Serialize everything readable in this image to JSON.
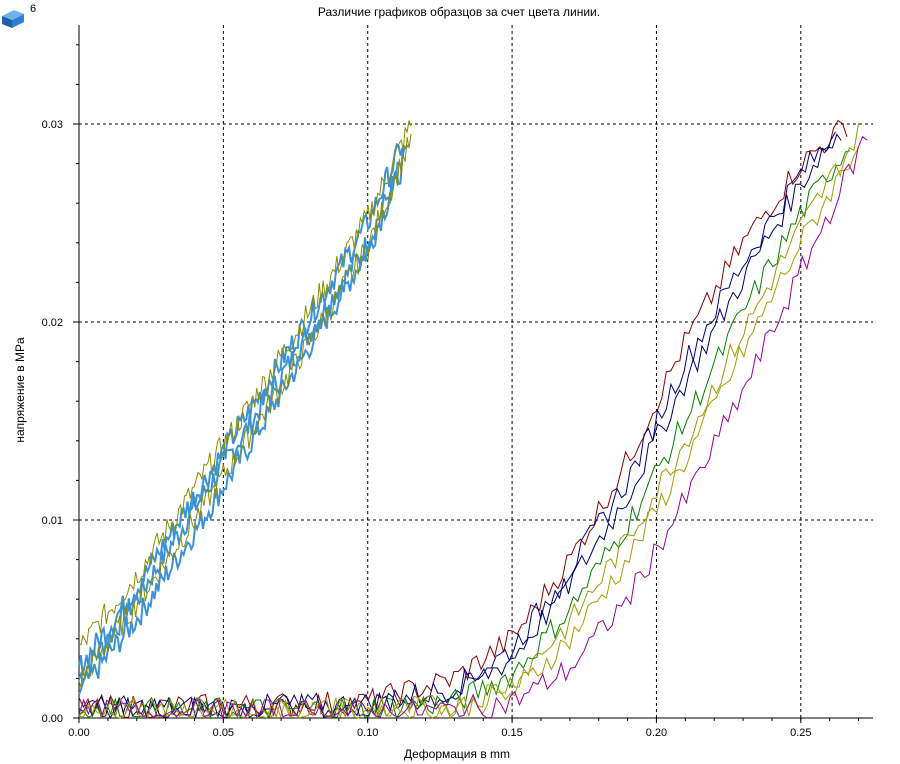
{
  "header": {
    "badge_count": "6",
    "badge_icon": "blue-cube-icon"
  },
  "chart_data": {
    "type": "line",
    "title": "Различие графиков образцов за счет цвета линии.",
    "xlabel": "Деформация в mm",
    "ylabel": "напряжение в MPa",
    "xlim": [
      0,
      0.275
    ],
    "ylim": [
      0,
      0.035
    ],
    "x_ticks": [
      "0.00",
      "0.05",
      "0.10",
      "0.15",
      "0.20",
      "0.25"
    ],
    "y_ticks": [
      "0.00",
      "0.01",
      "0.02",
      "0.03"
    ],
    "grid": true,
    "grid_style": "dashed",
    "series": [
      {
        "color": "#3a93d8",
        "x": [
          0,
          0.02,
          0.04,
          0.06,
          0.08,
          0.1,
          0.113
        ],
        "y": [
          0.002,
          0.006,
          0.0106,
          0.015,
          0.0195,
          0.024,
          0.0284
        ]
      },
      {
        "color": "#3a93d8",
        "x": [
          0,
          0.02,
          0.04,
          0.06,
          0.08,
          0.1,
          0.114
        ],
        "y": [
          0.0013,
          0.005,
          0.0094,
          0.014,
          0.0188,
          0.0236,
          0.0286
        ]
      },
      {
        "color": "#3a93d8",
        "x": [
          0,
          0.02,
          0.04,
          0.06,
          0.08,
          0.1,
          0.112
        ],
        "y": [
          0.0025,
          0.0066,
          0.0112,
          0.0157,
          0.0203,
          0.025,
          0.029
        ]
      },
      {
        "color": "#8c8c00",
        "x": [
          0,
          0.02,
          0.04,
          0.06,
          0.08,
          0.1,
          0.115
        ],
        "y": [
          0.0035,
          0.0072,
          0.0116,
          0.016,
          0.0206,
          0.0253,
          0.03
        ]
      },
      {
        "color": "#8c8c00",
        "x": [
          0,
          0.02,
          0.04,
          0.06,
          0.08,
          0.1,
          0.115
        ],
        "y": [
          0.0018,
          0.0058,
          0.01,
          0.0145,
          0.019,
          0.0238,
          0.0292
        ]
      },
      {
        "color": "#8b0000",
        "x": [
          0,
          0.05,
          0.1,
          0.13,
          0.15,
          0.17,
          0.19,
          0.21,
          0.23,
          0.25,
          0.266
        ],
        "y": [
          0.0005,
          0.0006,
          0.0008,
          0.002,
          0.004,
          0.008,
          0.013,
          0.019,
          0.024,
          0.028,
          0.03
        ]
      },
      {
        "color": "#000080",
        "x": [
          0,
          0.05,
          0.1,
          0.13,
          0.15,
          0.17,
          0.19,
          0.21,
          0.23,
          0.25,
          0.264
        ],
        "y": [
          0.0005,
          0.0005,
          0.0007,
          0.0015,
          0.0035,
          0.0075,
          0.012,
          0.018,
          0.023,
          0.0275,
          0.0298
        ]
      },
      {
        "color": "#00006a",
        "x": [
          0,
          0.05,
          0.1,
          0.13,
          0.15,
          0.17,
          0.19,
          0.21,
          0.23,
          0.25,
          0.262
        ],
        "y": [
          0.0004,
          0.0005,
          0.0006,
          0.0012,
          0.003,
          0.0068,
          0.0112,
          0.017,
          0.0222,
          0.027,
          0.0296
        ]
      },
      {
        "color": "#008000",
        "x": [
          0,
          0.05,
          0.1,
          0.13,
          0.15,
          0.17,
          0.19,
          0.21,
          0.23,
          0.25,
          0.267
        ],
        "y": [
          0.0004,
          0.0004,
          0.0005,
          0.0008,
          0.0022,
          0.0055,
          0.0098,
          0.015,
          0.0205,
          0.0255,
          0.029
        ]
      },
      {
        "color": "#9a9a00",
        "x": [
          0,
          0.05,
          0.1,
          0.13,
          0.15,
          0.17,
          0.19,
          0.21,
          0.23,
          0.25,
          0.27
        ],
        "y": [
          0.0004,
          0.0004,
          0.0004,
          0.0006,
          0.0018,
          0.0048,
          0.009,
          0.014,
          0.0195,
          0.0248,
          0.0295
        ]
      },
      {
        "color": "#a0a000",
        "x": [
          0,
          0.05,
          0.1,
          0.13,
          0.15,
          0.17,
          0.19,
          0.21,
          0.23,
          0.25,
          0.27
        ],
        "y": [
          0.0003,
          0.0003,
          0.0004,
          0.0005,
          0.0012,
          0.004,
          0.008,
          0.013,
          0.0185,
          0.024,
          0.029
        ]
      },
      {
        "color": "#990099",
        "x": [
          0,
          0.05,
          0.1,
          0.13,
          0.15,
          0.17,
          0.19,
          0.21,
          0.23,
          0.25,
          0.273
        ],
        "y": [
          0.0003,
          0.0003,
          0.0003,
          0.0004,
          0.0008,
          0.0025,
          0.006,
          0.011,
          0.0165,
          0.0225,
          0.0295
        ]
      }
    ]
  }
}
